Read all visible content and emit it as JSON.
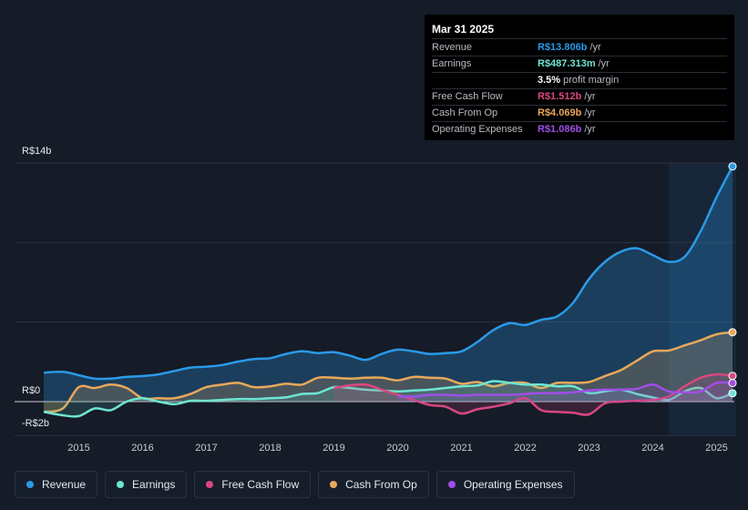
{
  "tooltip": {
    "date": "Mar 31 2025",
    "rows": [
      {
        "label": "Revenue",
        "value": "R$13.806b",
        "unit": "/yr",
        "color": "#2a9ae8"
      },
      {
        "label": "Earnings",
        "value": "R$487.313m",
        "unit": "/yr",
        "color": "#6ee5d2"
      },
      {
        "label": "",
        "value": "3.5%",
        "unit": "profit margin",
        "color": "#ffffff"
      },
      {
        "label": "Free Cash Flow",
        "value": "R$1.512b",
        "unit": "/yr",
        "color": "#d9487f"
      },
      {
        "label": "Cash From Op",
        "value": "R$4.069b",
        "unit": "/yr",
        "color": "#e8a85a"
      },
      {
        "label": "Operating Expenses",
        "value": "R$1.086b",
        "unit": "/yr",
        "color": "#a04ee8"
      }
    ]
  },
  "chart_data": {
    "type": "line",
    "ylim": [
      -2,
      14
    ],
    "y_tick_labels": [
      "R$14b",
      "R$0",
      "-R$2b"
    ],
    "x_tick_labels": [
      "2015",
      "2016",
      "2017",
      "2018",
      "2019",
      "2020",
      "2021",
      "2022",
      "2023",
      "2024",
      "2025"
    ],
    "x_range": [
      2014.45,
      2025.25
    ],
    "forecast_start": 2024.25,
    "series": [
      {
        "name": "Revenue",
        "color": "#2a9ae8",
        "x": [
          2014.45,
          2014.75,
          2015.0,
          2015.25,
          2015.5,
          2015.75,
          2016.0,
          2016.25,
          2016.5,
          2016.75,
          2017.0,
          2017.25,
          2017.5,
          2017.75,
          2018.0,
          2018.25,
          2018.5,
          2018.75,
          2019.0,
          2019.25,
          2019.5,
          2019.75,
          2020.0,
          2020.25,
          2020.5,
          2020.75,
          2021.0,
          2021.25,
          2021.5,
          2021.75,
          2022.0,
          2022.25,
          2022.5,
          2022.75,
          2023.0,
          2023.25,
          2023.5,
          2023.75,
          2024.0,
          2024.25,
          2024.5,
          2024.75,
          2025.0,
          2025.25
        ],
        "values": [
          1.7,
          1.75,
          1.55,
          1.35,
          1.35,
          1.45,
          1.5,
          1.6,
          1.8,
          2.0,
          2.05,
          2.15,
          2.35,
          2.5,
          2.55,
          2.8,
          2.95,
          2.85,
          2.9,
          2.7,
          2.45,
          2.8,
          3.05,
          2.95,
          2.8,
          2.85,
          2.95,
          3.5,
          4.2,
          4.6,
          4.5,
          4.8,
          5.0,
          5.8,
          7.2,
          8.2,
          8.8,
          9.0,
          8.6,
          8.2,
          8.5,
          10.0,
          12.0,
          13.8
        ]
      },
      {
        "name": "Earnings",
        "color": "#6ee5d2",
        "x": [
          2014.45,
          2014.75,
          2015.0,
          2015.25,
          2015.5,
          2015.75,
          2016.0,
          2016.25,
          2016.5,
          2016.75,
          2017.0,
          2017.25,
          2017.5,
          2017.75,
          2018.0,
          2018.25,
          2018.5,
          2018.75,
          2019.0,
          2019.25,
          2019.5,
          2019.75,
          2020.0,
          2020.25,
          2020.5,
          2020.75,
          2021.0,
          2021.25,
          2021.5,
          2021.75,
          2022.0,
          2022.25,
          2022.5,
          2022.75,
          2023.0,
          2023.25,
          2023.5,
          2023.75,
          2024.0,
          2024.25,
          2024.5,
          2024.75,
          2025.0,
          2025.25
        ],
        "values": [
          -0.6,
          -0.8,
          -0.85,
          -0.4,
          -0.5,
          0.0,
          0.2,
          0.0,
          -0.15,
          0.05,
          0.05,
          0.1,
          0.15,
          0.15,
          0.2,
          0.25,
          0.45,
          0.5,
          0.85,
          0.8,
          0.7,
          0.65,
          0.6,
          0.65,
          0.7,
          0.8,
          0.9,
          0.95,
          1.2,
          1.1,
          1.0,
          1.0,
          0.9,
          0.9,
          0.5,
          0.6,
          0.7,
          0.45,
          0.25,
          0.1,
          0.6,
          0.8,
          0.2,
          0.49
        ]
      },
      {
        "name": "Free Cash Flow",
        "color": "#d9487f",
        "x": [
          2019.0,
          2019.25,
          2019.5,
          2019.75,
          2020.0,
          2020.25,
          2020.5,
          2020.75,
          2021.0,
          2021.25,
          2021.5,
          2021.75,
          2022.0,
          2022.25,
          2022.5,
          2022.75,
          2023.0,
          2023.25,
          2023.5,
          2023.75,
          2024.0,
          2024.25,
          2024.5,
          2024.75,
          2025.0,
          2025.25
        ],
        "values": [
          0.8,
          0.95,
          1.0,
          0.7,
          0.4,
          0.1,
          -0.2,
          -0.3,
          -0.7,
          -0.45,
          -0.3,
          -0.1,
          0.2,
          -0.5,
          -0.6,
          -0.65,
          -0.75,
          -0.1,
          0.0,
          0.05,
          0.1,
          0.3,
          0.9,
          1.4,
          1.6,
          1.51
        ]
      },
      {
        "name": "Cash From Op",
        "color": "#e8a85a",
        "x": [
          2014.45,
          2014.75,
          2015.0,
          2015.25,
          2015.5,
          2015.75,
          2016.0,
          2016.25,
          2016.5,
          2016.75,
          2017.0,
          2017.25,
          2017.5,
          2017.75,
          2018.0,
          2018.25,
          2018.5,
          2018.75,
          2019.0,
          2019.25,
          2019.5,
          2019.75,
          2020.0,
          2020.25,
          2020.5,
          2020.75,
          2021.0,
          2021.25,
          2021.5,
          2021.75,
          2022.0,
          2022.25,
          2022.5,
          2022.75,
          2023.0,
          2023.25,
          2023.5,
          2023.75,
          2024.0,
          2024.25,
          2024.5,
          2024.75,
          2025.0,
          2025.25
        ],
        "values": [
          -0.6,
          -0.4,
          0.85,
          0.8,
          1.0,
          0.8,
          0.2,
          0.2,
          0.2,
          0.45,
          0.85,
          1.0,
          1.1,
          0.85,
          0.9,
          1.05,
          1.0,
          1.4,
          1.4,
          1.35,
          1.4,
          1.4,
          1.25,
          1.45,
          1.4,
          1.35,
          1.05,
          1.15,
          0.9,
          1.1,
          1.1,
          0.8,
          1.1,
          1.1,
          1.15,
          1.5,
          1.85,
          2.4,
          2.95,
          3.0,
          3.3,
          3.6,
          3.95,
          4.07
        ]
      },
      {
        "name": "Operating Expenses",
        "color": "#a04ee8",
        "x": [
          2020.0,
          2020.25,
          2020.5,
          2020.75,
          2021.0,
          2021.25,
          2021.5,
          2021.75,
          2022.0,
          2022.25,
          2022.5,
          2022.75,
          2023.0,
          2023.25,
          2023.5,
          2023.75,
          2024.0,
          2024.25,
          2024.5,
          2024.75,
          2025.0,
          2025.25
        ],
        "values": [
          0.3,
          0.3,
          0.4,
          0.4,
          0.35,
          0.4,
          0.4,
          0.4,
          0.45,
          0.5,
          0.5,
          0.55,
          0.65,
          0.7,
          0.7,
          0.75,
          1.0,
          0.6,
          0.55,
          0.6,
          1.1,
          1.09
        ]
      }
    ]
  },
  "legend": [
    {
      "label": "Revenue",
      "color": "#2a9ae8"
    },
    {
      "label": "Earnings",
      "color": "#6ee5d2"
    },
    {
      "label": "Free Cash Flow",
      "color": "#d9487f"
    },
    {
      "label": "Cash From Op",
      "color": "#e8a85a"
    },
    {
      "label": "Operating Expenses",
      "color": "#a04ee8"
    }
  ]
}
